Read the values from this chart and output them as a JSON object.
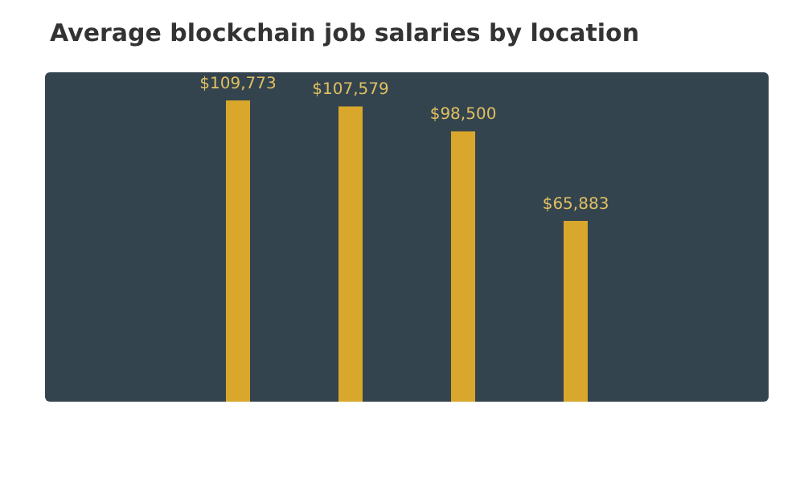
{
  "chart_data": {
    "type": "bar",
    "title": "Average blockchain job salaries by location",
    "categories": [
      null,
      null,
      null,
      null
    ],
    "values": [
      109773,
      107579,
      98500,
      65883
    ],
    "value_labels": [
      "$109,773",
      "$107,579",
      "$98,500",
      "$65,883"
    ],
    "color": "#d9a72c"
  }
}
